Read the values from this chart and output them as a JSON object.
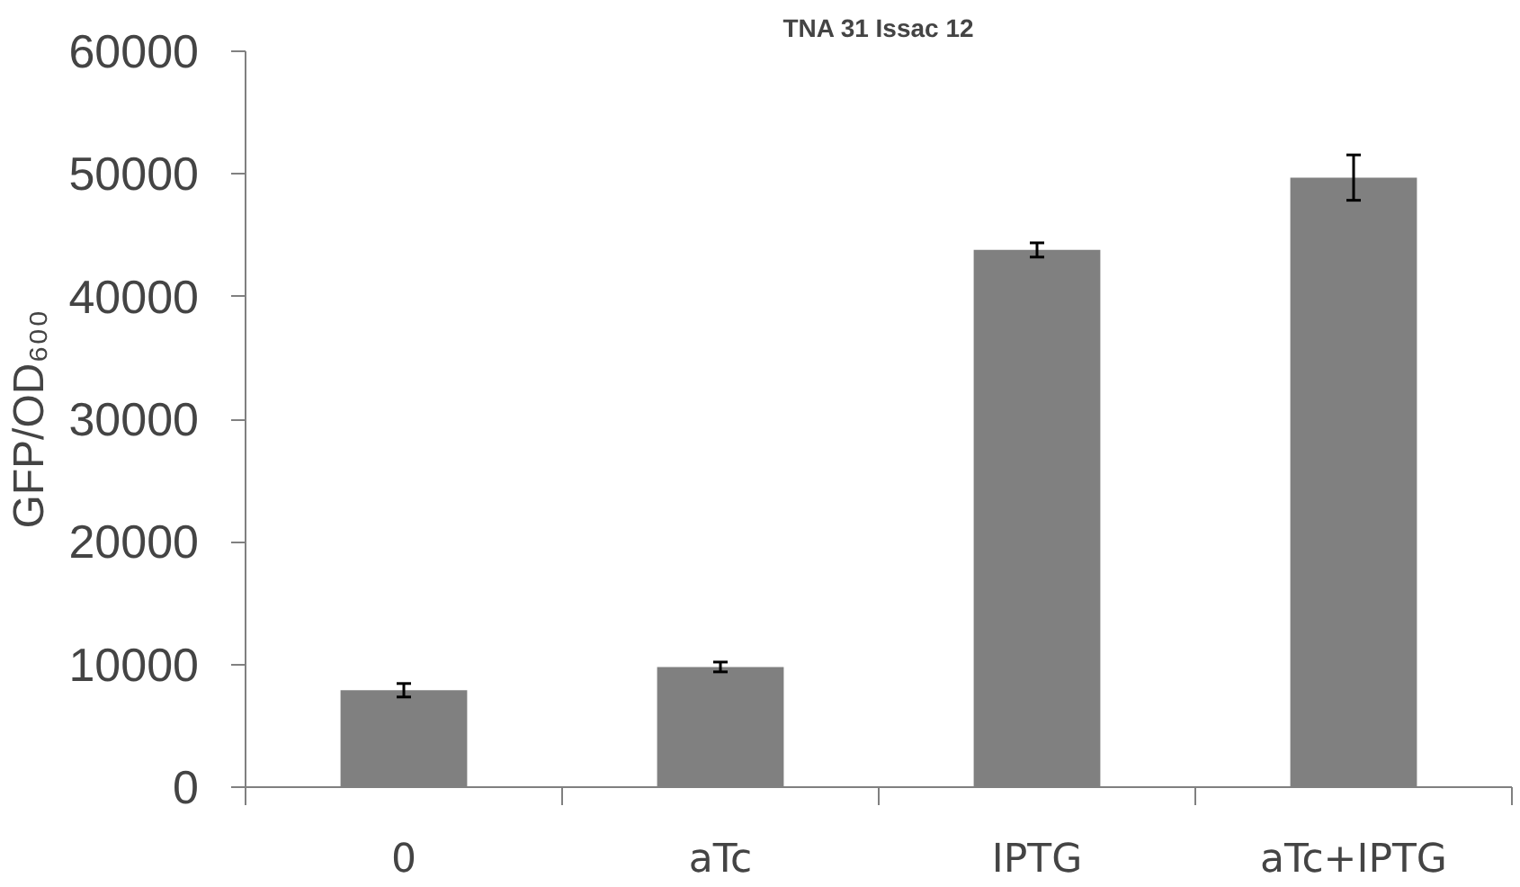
{
  "chart_data": {
    "type": "bar",
    "title": "TNA 31 Issac 12",
    "ylabel": "GFP/OD₆₀₀",
    "categories": [
      "0",
      "aTc",
      "IPTG",
      "aTc+IPTG"
    ],
    "values": [
      7900,
      9800,
      43800,
      49700
    ],
    "errors": [
      550,
      400,
      580,
      1850
    ],
    "color": "#808080",
    "ylim": [
      0,
      60000
    ],
    "yticks": [
      0,
      10000,
      20000,
      30000,
      40000,
      50000,
      60000
    ],
    "grid": false
  }
}
